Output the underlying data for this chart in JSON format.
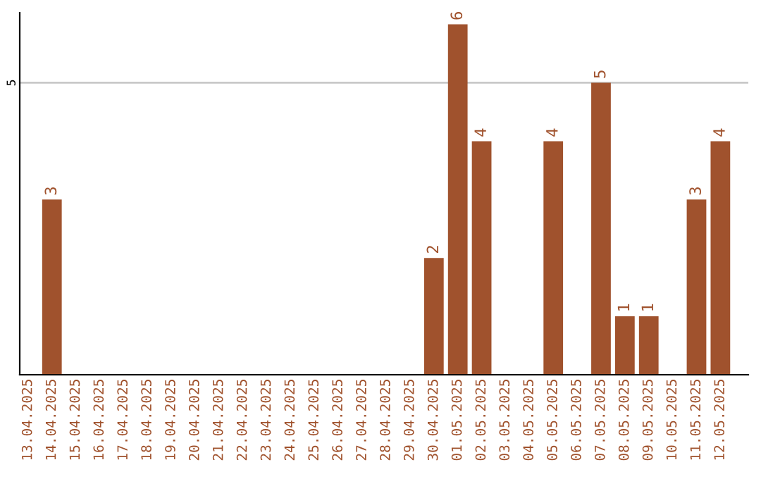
{
  "chart_data": {
    "type": "bar",
    "categories": [
      "13.04.2025",
      "14.04.2025",
      "15.04.2025",
      "16.04.2025",
      "17.04.2025",
      "18.04.2025",
      "19.04.2025",
      "20.04.2025",
      "21.04.2025",
      "22.04.2025",
      "23.04.2025",
      "24.04.2025",
      "25.04.2025",
      "26.04.2025",
      "27.04.2025",
      "28.04.2025",
      "29.04.2025",
      "30.04.2025",
      "01.05.2025",
      "02.05.2025",
      "03.05.2025",
      "04.05.2025",
      "05.05.2025",
      "06.05.2025",
      "07.05.2025",
      "08.05.2025",
      "09.05.2025",
      "10.05.2025",
      "11.05.2025",
      "12.05.2025"
    ],
    "values": [
      0,
      3,
      0,
      0,
      0,
      0,
      0,
      0,
      0,
      0,
      0,
      0,
      0,
      0,
      0,
      0,
      0,
      2,
      6,
      4,
      0,
      0,
      4,
      0,
      5,
      1,
      1,
      0,
      3,
      4
    ],
    "value_labels": [
      null,
      "3",
      null,
      null,
      null,
      null,
      null,
      null,
      null,
      null,
      null,
      null,
      null,
      null,
      null,
      null,
      null,
      "2",
      "6",
      "4",
      null,
      null,
      "4",
      null,
      "5",
      "1",
      "1",
      null,
      "3",
      "4"
    ],
    "color": "#a0522d",
    "ylim": [
      0,
      6.2
    ],
    "yticks": [
      5
    ],
    "grid": "y",
    "legend": false
  }
}
